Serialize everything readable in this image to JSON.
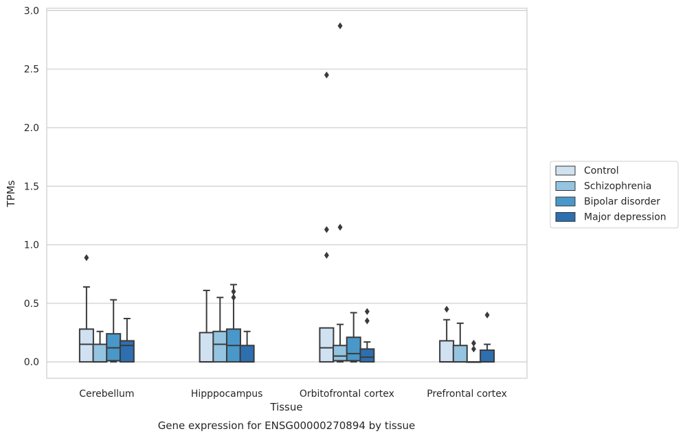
{
  "chart_data": {
    "type": "box",
    "title": "",
    "xlabel": "Tissue",
    "ylabel": "TPMs",
    "caption": "Gene expression for ENSG00000270894 by tissue",
    "ylim": [
      -0.14,
      3.02
    ],
    "yticks": [
      "0.0",
      "0.5",
      "1.0",
      "1.5",
      "2.0",
      "2.5",
      "3.0"
    ],
    "ytick_values": [
      0,
      0.5,
      1.0,
      1.5,
      2.0,
      2.5,
      3.0
    ],
    "grid": "horizontal",
    "legend_position": "right",
    "categories": [
      "Cerebellum",
      "Hipppocampus",
      "Orbitofrontal cortex",
      "Prefrontal cortex"
    ],
    "series": [
      {
        "name": "Control",
        "color": "#d0e1f2",
        "boxes": [
          {
            "whislo": 0,
            "q1": 0,
            "med": 0.15,
            "q3": 0.28,
            "whishi": 0.64,
            "fliers": [
              0.89
            ]
          },
          {
            "whislo": 0,
            "q1": 0,
            "med": 0,
            "q3": 0.25,
            "whishi": 0.61,
            "fliers": []
          },
          {
            "whislo": 0,
            "q1": 0,
            "med": 0.12,
            "q3": 0.29,
            "whishi": 0.29,
            "fliers": [
              0.91,
              1.13,
              2.45
            ]
          },
          {
            "whislo": 0,
            "q1": 0,
            "med": 0,
            "q3": 0.18,
            "whishi": 0.36,
            "fliers": [
              0.45
            ]
          }
        ]
      },
      {
        "name": "Schizophrenia",
        "color": "#94c4df",
        "boxes": [
          {
            "whislo": 0,
            "q1": 0,
            "med": 0,
            "q3": 0.15,
            "whishi": 0.26,
            "fliers": []
          },
          {
            "whislo": 0,
            "q1": 0,
            "med": 0.15,
            "q3": 0.26,
            "whishi": 0.55,
            "fliers": []
          },
          {
            "whislo": 0,
            "q1": 0.01,
            "med": 0.05,
            "q3": 0.14,
            "whishi": 0.32,
            "fliers": [
              1.15,
              2.87
            ]
          },
          {
            "whislo": 0,
            "q1": 0,
            "med": 0,
            "q3": 0.14,
            "whishi": 0.33,
            "fliers": []
          }
        ]
      },
      {
        "name": "Bipolar disorder",
        "color": "#4a98c9",
        "boxes": [
          {
            "whislo": 0,
            "q1": 0.01,
            "med": 0.12,
            "q3": 0.24,
            "whishi": 0.53,
            "fliers": []
          },
          {
            "whislo": 0,
            "q1": 0,
            "med": 0.14,
            "q3": 0.28,
            "whishi": 0.66,
            "fliers": [
              0.55,
              0.6
            ]
          },
          {
            "whislo": 0,
            "q1": 0.01,
            "med": 0.07,
            "q3": 0.21,
            "whishi": 0.42,
            "fliers": []
          },
          {
            "whislo": 0,
            "q1": 0,
            "med": 0,
            "q3": 0,
            "whishi": 0,
            "fliers": [
              0.11,
              0.16
            ]
          }
        ]
      },
      {
        "name": "Major depression",
        "color": "#2e6fb0",
        "boxes": [
          {
            "whislo": 0,
            "q1": 0,
            "med": 0.14,
            "q3": 0.18,
            "whishi": 0.37,
            "fliers": []
          },
          {
            "whislo": 0,
            "q1": 0,
            "med": 0,
            "q3": 0.14,
            "whishi": 0.26,
            "fliers": []
          },
          {
            "whislo": 0,
            "q1": 0,
            "med": 0.04,
            "q3": 0.11,
            "whishi": 0.17,
            "fliers": [
              0.35,
              0.43
            ]
          },
          {
            "whislo": 0,
            "q1": 0,
            "med": 0,
            "q3": 0.1,
            "whishi": 0.15,
            "fliers": [
              0.4
            ]
          }
        ]
      }
    ]
  }
}
